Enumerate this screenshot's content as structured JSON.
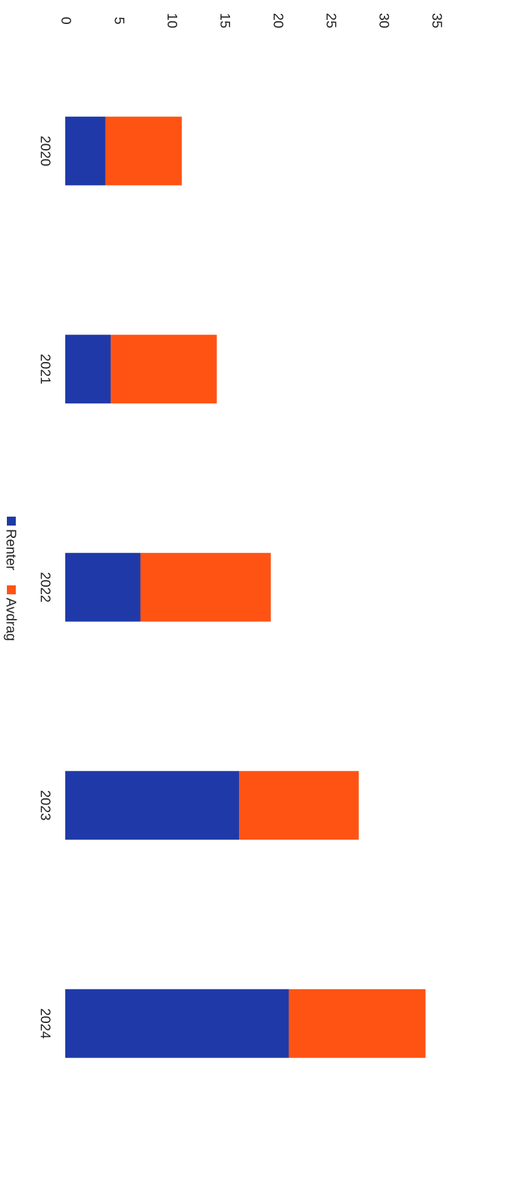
{
  "chart_data": {
    "type": "stacked_bar",
    "categories": [
      "2020",
      "2021",
      "2022",
      "2023",
      "2024"
    ],
    "series": [
      {
        "name": "Renter",
        "color": "#1f3aa8",
        "values": [
          3.8,
          4.3,
          7.1,
          16.4,
          21.1
        ]
      },
      {
        "name": "Avdrag",
        "color": "#ff5314",
        "values": [
          7.2,
          10.0,
          12.3,
          11.3,
          12.9
        ]
      }
    ],
    "ylim": [
      0,
      35
    ],
    "yticks": [
      0,
      5,
      10,
      15,
      20,
      25,
      30,
      35
    ],
    "legend": "bottom",
    "rotation": 90
  }
}
